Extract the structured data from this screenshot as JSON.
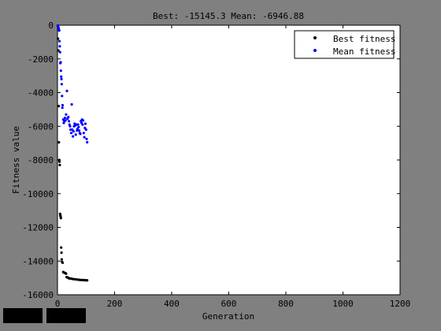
{
  "window": {
    "background": "#808080"
  },
  "buttons": [
    {
      "name": "toolbar-button-left"
    },
    {
      "name": "toolbar-button-right"
    }
  ],
  "chart_data": {
    "type": "scatter",
    "title": "Best: -15145.3 Mean: -6946.88",
    "xlabel": "Generation",
    "ylabel": "Fitness value",
    "xlim": [
      0,
      1200
    ],
    "ylim": [
      -16000,
      0
    ],
    "xticks": [
      "0",
      "200",
      "400",
      "600",
      "800",
      "1000",
      "1200"
    ],
    "yticks": [
      "0",
      "-2000",
      "-4000",
      "-6000",
      "-8000",
      "-10000",
      "-12000",
      "-14000",
      "-16000"
    ],
    "grid": false,
    "legend_position": "top-right",
    "series": [
      {
        "name": "Best fitness",
        "color": "#000000",
        "points": [
          [
            1,
            -50
          ],
          [
            2,
            -800
          ],
          [
            3,
            -1500
          ],
          [
            4,
            -4800
          ],
          [
            5,
            -6950
          ],
          [
            6,
            -8000
          ],
          [
            7,
            -8100
          ],
          [
            8,
            -8300
          ],
          [
            9,
            -11200
          ],
          [
            10,
            -11300
          ],
          [
            11,
            -11350
          ],
          [
            12,
            -11450
          ],
          [
            13,
            -13200
          ],
          [
            14,
            -13500
          ],
          [
            15,
            -13900
          ],
          [
            16,
            -14050
          ],
          [
            18,
            -14100
          ],
          [
            20,
            -14650
          ],
          [
            22,
            -14680
          ],
          [
            25,
            -14700
          ],
          [
            28,
            -14720
          ],
          [
            30,
            -14750
          ],
          [
            32,
            -14950
          ],
          [
            35,
            -14970
          ],
          [
            38,
            -15000
          ],
          [
            40,
            -15020
          ],
          [
            43,
            -15030
          ],
          [
            46,
            -15040
          ],
          [
            50,
            -15050
          ],
          [
            55,
            -15070
          ],
          [
            60,
            -15080
          ],
          [
            65,
            -15090
          ],
          [
            70,
            -15100
          ],
          [
            75,
            -15110
          ],
          [
            80,
            -15120
          ],
          [
            85,
            -15125
          ],
          [
            90,
            -15130
          ],
          [
            95,
            -15135
          ],
          [
            100,
            -15140
          ],
          [
            104,
            -15145.3
          ]
        ]
      },
      {
        "name": "Mean fitness",
        "color": "#0000ff",
        "points": [
          [
            1,
            -20
          ],
          [
            2,
            -40
          ],
          [
            3,
            -120
          ],
          [
            4,
            -180
          ],
          [
            5,
            -250
          ],
          [
            6,
            -320
          ],
          [
            7,
            -950
          ],
          [
            8,
            -1250
          ],
          [
            9,
            -1600
          ],
          [
            10,
            -2250
          ],
          [
            11,
            -2200
          ],
          [
            12,
            -2700
          ],
          [
            13,
            -3050
          ],
          [
            14,
            -3200
          ],
          [
            15,
            -3500
          ],
          [
            16,
            -4200
          ],
          [
            17,
            -4900
          ],
          [
            18,
            -4750
          ],
          [
            20,
            -5600
          ],
          [
            22,
            -5800
          ],
          [
            24,
            -5700
          ],
          [
            26,
            -5500
          ],
          [
            28,
            -5650
          ],
          [
            30,
            -5300
          ],
          [
            33,
            -3900
          ],
          [
            35,
            -5550
          ],
          [
            38,
            -5450
          ],
          [
            40,
            -5700
          ],
          [
            42,
            -5900
          ],
          [
            44,
            -6000
          ],
          [
            46,
            -6200
          ],
          [
            48,
            -6400
          ],
          [
            50,
            -4700
          ],
          [
            52,
            -6200
          ],
          [
            54,
            -6600
          ],
          [
            56,
            -6300
          ],
          [
            58,
            -6000
          ],
          [
            60,
            -5850
          ],
          [
            62,
            -5950
          ],
          [
            64,
            -6500
          ],
          [
            66,
            -5900
          ],
          [
            68,
            -6250
          ],
          [
            70,
            -6150
          ],
          [
            72,
            -5900
          ],
          [
            74,
            -6050
          ],
          [
            76,
            -6250
          ],
          [
            78,
            -6400
          ],
          [
            80,
            -6450
          ],
          [
            82,
            -5700
          ],
          [
            84,
            -5800
          ],
          [
            86,
            -5600
          ],
          [
            88,
            -5900
          ],
          [
            90,
            -5650
          ],
          [
            92,
            -6400
          ],
          [
            94,
            -6650
          ],
          [
            96,
            -6100
          ],
          [
            98,
            -5850
          ],
          [
            100,
            -6200
          ],
          [
            102,
            -6750
          ],
          [
            104,
            -6946.88
          ]
        ]
      }
    ]
  }
}
